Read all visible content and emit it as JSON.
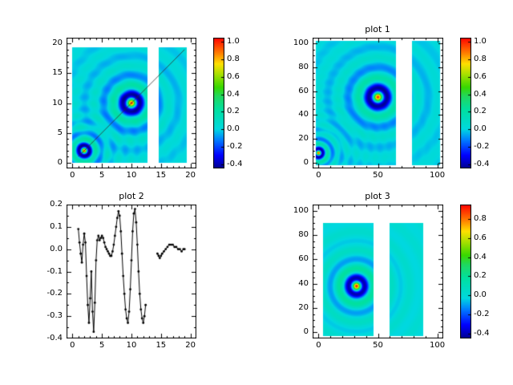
{
  "figure": {
    "background": "#ffffff",
    "colormap_stops": [
      [
        0.0,
        "#000090"
      ],
      [
        0.1,
        "#0000ff"
      ],
      [
        0.22,
        "#0080ff"
      ],
      [
        0.3,
        "#00d8e0"
      ],
      [
        0.45,
        "#00e0a0"
      ],
      [
        0.55,
        "#20d860"
      ],
      [
        0.62,
        "#38d800"
      ],
      [
        0.72,
        "#a8e000"
      ],
      [
        0.8,
        "#ffe000"
      ],
      [
        0.88,
        "#ff8000"
      ],
      [
        1.0,
        "#ff0000"
      ]
    ]
  },
  "chart_data": [
    {
      "id": "tl",
      "type": "heatmap",
      "title": "",
      "xlim": [
        -1,
        21
      ],
      "ylim": [
        -1,
        21
      ],
      "x_minor": 1,
      "y_minor": 1,
      "x_ticks": [
        {
          "v": 0,
          "label": "0"
        },
        {
          "v": 5,
          "label": "5"
        },
        {
          "v": 10,
          "label": "10"
        },
        {
          "v": 15,
          "label": "15"
        },
        {
          "v": 20,
          "label": "20"
        }
      ],
      "y_ticks": [
        {
          "v": 0,
          "label": "0"
        },
        {
          "v": 5,
          "label": "5"
        },
        {
          "v": 10,
          "label": "10"
        },
        {
          "v": 15,
          "label": "15"
        },
        {
          "v": 20,
          "label": "20"
        }
      ],
      "vmin": -0.45,
      "vmax": 1.05,
      "rows": [
        0,
        19.4
      ],
      "col_blocks": [
        [
          0,
          12.7
        ],
        [
          14.6,
          19.4
        ]
      ],
      "peaks": [
        {
          "cx": 10,
          "cy": 10,
          "amp": 1.0,
          "wavelength": 3.2,
          "falloff": 1.3
        },
        {
          "cx": 2,
          "cy": 2,
          "amp": 1.0,
          "wavelength": 2.0,
          "falloff": 0.8
        }
      ],
      "overlay_line": {
        "x1": 1,
        "y1": 1,
        "x2": 19,
        "y2": 19
      },
      "colorbar": {
        "vmin": -0.45,
        "vmax": 1.05,
        "ticks": [
          {
            "v": 1.0,
            "label": "1.0"
          },
          {
            "v": 0.8,
            "label": "0.8"
          },
          {
            "v": 0.6,
            "label": "0.6"
          },
          {
            "v": 0.4,
            "label": "0.4"
          },
          {
            "v": 0.2,
            "label": "0.2"
          },
          {
            "v": 0.0,
            "label": "0.0"
          },
          {
            "v": -0.2,
            "label": "-0.2"
          },
          {
            "v": -0.4,
            "label": "-0.4"
          }
        ]
      }
    },
    {
      "id": "tr",
      "type": "heatmap",
      "title": "plot 1",
      "xlim": [
        -5,
        105
      ],
      "ylim": [
        -5,
        105
      ],
      "x_minor": 10,
      "y_minor": 5,
      "x_ticks": [
        {
          "v": 0,
          "label": "0"
        },
        {
          "v": 50,
          "label": "50"
        },
        {
          "v": 100,
          "label": "100"
        }
      ],
      "y_ticks": [
        {
          "v": 0,
          "label": "0"
        },
        {
          "v": 20,
          "label": "20"
        },
        {
          "v": 40,
          "label": "40"
        },
        {
          "v": 60,
          "label": "60"
        },
        {
          "v": 80,
          "label": "80"
        },
        {
          "v": 100,
          "label": "100"
        }
      ],
      "vmin": -0.45,
      "vmax": 1.05,
      "rows": [
        -2,
        102
      ],
      "col_blocks": [
        [
          -2,
          65
        ],
        [
          79,
          102
        ]
      ],
      "peaks": [
        {
          "cx": 50,
          "cy": 55,
          "amp": 1.0,
          "wavelength": 17,
          "falloff": 6.9
        },
        {
          "cx": 0,
          "cy": 8,
          "amp": 1.0,
          "wavelength": 8,
          "falloff": 3.2
        }
      ],
      "colorbar": {
        "vmin": -0.45,
        "vmax": 1.05,
        "ticks": [
          {
            "v": 1.0,
            "label": "1.0"
          },
          {
            "v": 0.8,
            "label": "0.8"
          },
          {
            "v": 0.6,
            "label": "0.6"
          },
          {
            "v": 0.4,
            "label": "0.4"
          },
          {
            "v": 0.2,
            "label": "0.2"
          },
          {
            "v": 0.0,
            "label": "0.0"
          },
          {
            "v": -0.2,
            "label": "-0.2"
          },
          {
            "v": -0.4,
            "label": "-0.4"
          }
        ]
      }
    },
    {
      "id": "bl",
      "type": "line",
      "title": "plot 2",
      "xlim": [
        -1,
        21
      ],
      "ylim": [
        -0.4,
        0.2
      ],
      "x_minor": 1,
      "y_minor": 0.05,
      "x_ticks": [
        {
          "v": 0,
          "label": "0"
        },
        {
          "v": 5,
          "label": "5"
        },
        {
          "v": 10,
          "label": "10"
        },
        {
          "v": 15,
          "label": "15"
        },
        {
          "v": 20,
          "label": "20"
        }
      ],
      "y_ticks": [
        {
          "v": 0.2,
          "label": "0.2"
        },
        {
          "v": 0.1,
          "label": "0.1"
        },
        {
          "v": 0.0,
          "label": "0.0"
        },
        {
          "v": -0.1,
          "label": "-0.1"
        },
        {
          "v": -0.2,
          "label": "-0.2"
        },
        {
          "v": -0.3,
          "label": "-0.3"
        },
        {
          "v": -0.4,
          "label": "-0.4"
        }
      ],
      "series": {
        "color": "#000000",
        "marker_size": 1.4,
        "segments": [
          [
            [
              1.0,
              0.09
            ],
            [
              1.2,
              0.03
            ],
            [
              1.4,
              -0.02
            ],
            [
              1.6,
              -0.06
            ],
            [
              1.8,
              0.02
            ],
            [
              2.0,
              0.07
            ],
            [
              2.2,
              0.03
            ],
            [
              2.4,
              -0.12
            ],
            [
              2.6,
              -0.25
            ],
            [
              2.8,
              -0.33
            ],
            [
              3.0,
              -0.22
            ],
            [
              3.2,
              -0.1
            ],
            [
              3.4,
              -0.28
            ],
            [
              3.6,
              -0.37
            ],
            [
              3.8,
              -0.24
            ],
            [
              4.0,
              -0.05
            ],
            [
              4.2,
              0.04
            ],
            [
              4.4,
              0.06
            ],
            [
              4.6,
              0.04
            ],
            [
              4.8,
              0.05
            ],
            [
              5.0,
              0.06
            ],
            [
              5.2,
              0.05
            ],
            [
              5.4,
              0.03
            ],
            [
              5.6,
              0.01
            ],
            [
              5.8,
              0.0
            ],
            [
              6.0,
              -0.01
            ],
            [
              6.2,
              -0.02
            ],
            [
              6.4,
              -0.03
            ],
            [
              6.6,
              -0.03
            ],
            [
              6.8,
              -0.01
            ],
            [
              7.0,
              0.02
            ],
            [
              7.2,
              0.06
            ],
            [
              7.4,
              0.1
            ],
            [
              7.6,
              0.14
            ],
            [
              7.8,
              0.17
            ],
            [
              8.0,
              0.15
            ],
            [
              8.2,
              0.08
            ],
            [
              8.4,
              -0.02
            ],
            [
              8.6,
              -0.12
            ],
            [
              8.8,
              -0.2
            ],
            [
              9.0,
              -0.27
            ],
            [
              9.2,
              -0.31
            ],
            [
              9.4,
              -0.33
            ],
            [
              9.6,
              -0.28
            ],
            [
              9.8,
              -0.18
            ],
            [
              10.0,
              -0.05
            ],
            [
              10.2,
              0.08
            ],
            [
              10.4,
              0.16
            ],
            [
              10.6,
              0.18
            ],
            [
              10.8,
              0.12
            ],
            [
              11.0,
              0.02
            ],
            [
              11.2,
              -0.1
            ],
            [
              11.4,
              -0.2
            ],
            [
              11.6,
              -0.27
            ],
            [
              11.8,
              -0.31
            ],
            [
              12.0,
              -0.33
            ],
            [
              12.2,
              -0.3
            ],
            [
              12.4,
              -0.25
            ]
          ],
          [
            [
              14.4,
              -0.02
            ],
            [
              14.6,
              -0.03
            ],
            [
              14.8,
              -0.04
            ],
            [
              15.0,
              -0.03
            ],
            [
              15.2,
              -0.02
            ],
            [
              15.5,
              -0.01
            ],
            [
              15.8,
              0.0
            ],
            [
              16.1,
              0.01
            ],
            [
              16.4,
              0.02
            ],
            [
              16.7,
              0.02
            ],
            [
              17.0,
              0.02
            ],
            [
              17.3,
              0.01
            ],
            [
              17.6,
              0.01
            ],
            [
              17.9,
              0.0
            ],
            [
              18.2,
              0.0
            ],
            [
              18.5,
              -0.01
            ],
            [
              18.8,
              0.0
            ],
            [
              19.0,
              0.0
            ]
          ]
        ]
      }
    },
    {
      "id": "br",
      "type": "heatmap",
      "title": "plot 3",
      "xlim": [
        -5,
        105
      ],
      "ylim": [
        -5,
        105
      ],
      "x_minor": 10,
      "y_minor": 5,
      "x_ticks": [
        {
          "v": 0,
          "label": "0"
        },
        {
          "v": 50,
          "label": "50"
        },
        {
          "v": 100,
          "label": "100"
        }
      ],
      "y_ticks": [
        {
          "v": 0,
          "label": "0"
        },
        {
          "v": 20,
          "label": "20"
        },
        {
          "v": 40,
          "label": "40"
        },
        {
          "v": 60,
          "label": "60"
        },
        {
          "v": 80,
          "label": "80"
        },
        {
          "v": 100,
          "label": "100"
        }
      ],
      "vmin": -0.45,
      "vmax": 0.95,
      "rows": [
        -3,
        90
      ],
      "col_blocks": [
        [
          4,
          46
        ],
        [
          60,
          88
        ]
      ],
      "peaks": [
        {
          "cx": 32,
          "cy": 38,
          "amp": 0.93,
          "wavelength": 15,
          "falloff": 6.1
        }
      ],
      "colorbar": {
        "vmin": -0.45,
        "vmax": 0.95,
        "ticks": [
          {
            "v": 0.8,
            "label": "0.8"
          },
          {
            "v": 0.6,
            "label": "0.6"
          },
          {
            "v": 0.4,
            "label": "0.4"
          },
          {
            "v": 0.2,
            "label": "0.2"
          },
          {
            "v": 0.0,
            "label": "0.0"
          },
          {
            "v": -0.2,
            "label": "-0.2"
          },
          {
            "v": -0.4,
            "label": "-0.4"
          }
        ]
      }
    }
  ]
}
